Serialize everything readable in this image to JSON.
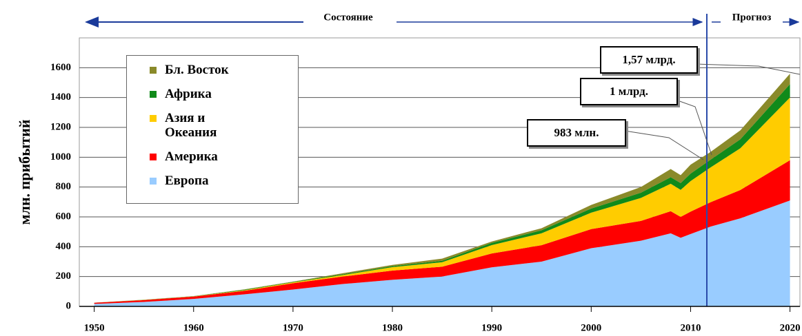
{
  "chart_data": {
    "type": "area",
    "stacked": true,
    "y_label": "млн. прибытий",
    "period_labels": [
      "Состояние",
      "Прогноз"
    ],
    "annotations": [
      "1,57 млрд.",
      "1 млрд.",
      "983 млн."
    ],
    "x": [
      1950,
      1955,
      1960,
      1965,
      1970,
      1975,
      1980,
      1985,
      1990,
      1995,
      2000,
      2005,
      2008,
      2009,
      2010,
      2012,
      2015,
      2020
    ],
    "series": [
      {
        "name": "Европа",
        "color": "#99ccff",
        "values": [
          17,
          30,
          50,
          80,
          113,
          150,
          178,
          200,
          262,
          300,
          390,
          440,
          490,
          460,
          485,
          535,
          590,
          710
        ]
      },
      {
        "name": "Америка",
        "color": "#ff0000",
        "values": [
          7,
          12,
          16,
          23,
          42,
          50,
          62,
          66,
          93,
          110,
          128,
          133,
          148,
          140,
          150,
          163,
          190,
          270
        ]
      },
      {
        "name": "Азия и Океания",
        "color": "#ffcc00",
        "values": [
          0.2,
          1,
          1,
          4,
          6,
          10,
          23,
          30,
          56,
          80,
          110,
          154,
          184,
          181,
          205,
          233,
          280,
          420
        ]
      },
      {
        "name": "Африка",
        "color": "#108a1a",
        "values": [
          0.5,
          1,
          1,
          3,
          3,
          5,
          7,
          10,
          15,
          20,
          28,
          35,
          44,
          46,
          50,
          52,
          60,
          90
        ]
      },
      {
        "name": "Бл. Восток",
        "color": "#8a8a2a",
        "values": [
          0.2,
          1,
          1,
          3,
          2,
          7,
          8,
          14,
          9,
          14,
          24,
          38,
          55,
          53,
          60,
          52,
          60,
          70
        ]
      }
    ],
    "xlim": [
      1948.5,
      2021
    ],
    "xticks": [
      1950,
      1960,
      1970,
      1980,
      1990,
      2000,
      2010,
      2020
    ],
    "ylim": [
      0,
      1800
    ],
    "yticks": [
      0,
      200,
      400,
      600,
      800,
      1000,
      1200,
      1400,
      1600
    ],
    "grid": true
  }
}
